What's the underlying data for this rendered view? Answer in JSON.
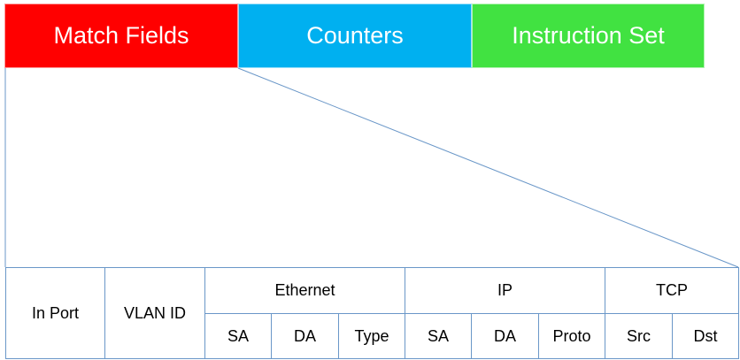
{
  "header": {
    "match_fields": "Match Fields",
    "counters": "Counters",
    "instruction_set": "Instruction Set"
  },
  "fields": {
    "in_port": "In Port",
    "vlan_id": "VLAN ID",
    "ethernet": {
      "label": "Ethernet",
      "sa": "SA",
      "da": "DA",
      "type": "Type"
    },
    "ip": {
      "label": "IP",
      "sa": "SA",
      "da": "DA",
      "proto": "Proto"
    },
    "tcp": {
      "label": "TCP",
      "src": "Src",
      "dst": "Dst"
    }
  },
  "colors": {
    "match_fields": "#ff0000",
    "counters": "#00b0f0",
    "instruction_set": "#41e241",
    "line": "#6a97c8"
  }
}
